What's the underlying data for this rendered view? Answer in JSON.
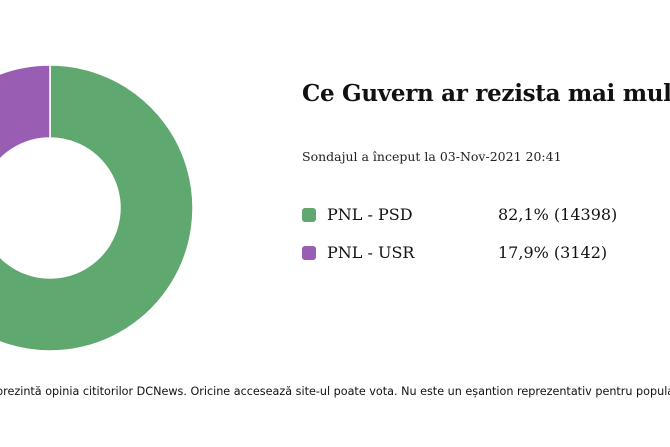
{
  "poll": {
    "title": "Ce Guvern ar rezista mai mult?",
    "started_text": "Sondajul a început la 03-Nov-2021 20:41",
    "footnote": "prezintă opinia cititorilor DCNews. Oricine accesează site-ul poate vota. Nu este un eșantion reprezentativ pentru populația ge"
  },
  "chart_data": {
    "type": "pie",
    "variant": "donut",
    "title": "Ce Guvern ar rezista mai mult?",
    "legend_placement": "right",
    "categories": [
      "PNL - PSD",
      "PNL - USR"
    ],
    "values": [
      82.1,
      17.9
    ],
    "counts": [
      14398,
      3142
    ],
    "labels": [
      "82,1% (14398)",
      "17,9% (3142)"
    ],
    "colors": [
      "#5fa86f",
      "#9a5db4"
    ]
  }
}
